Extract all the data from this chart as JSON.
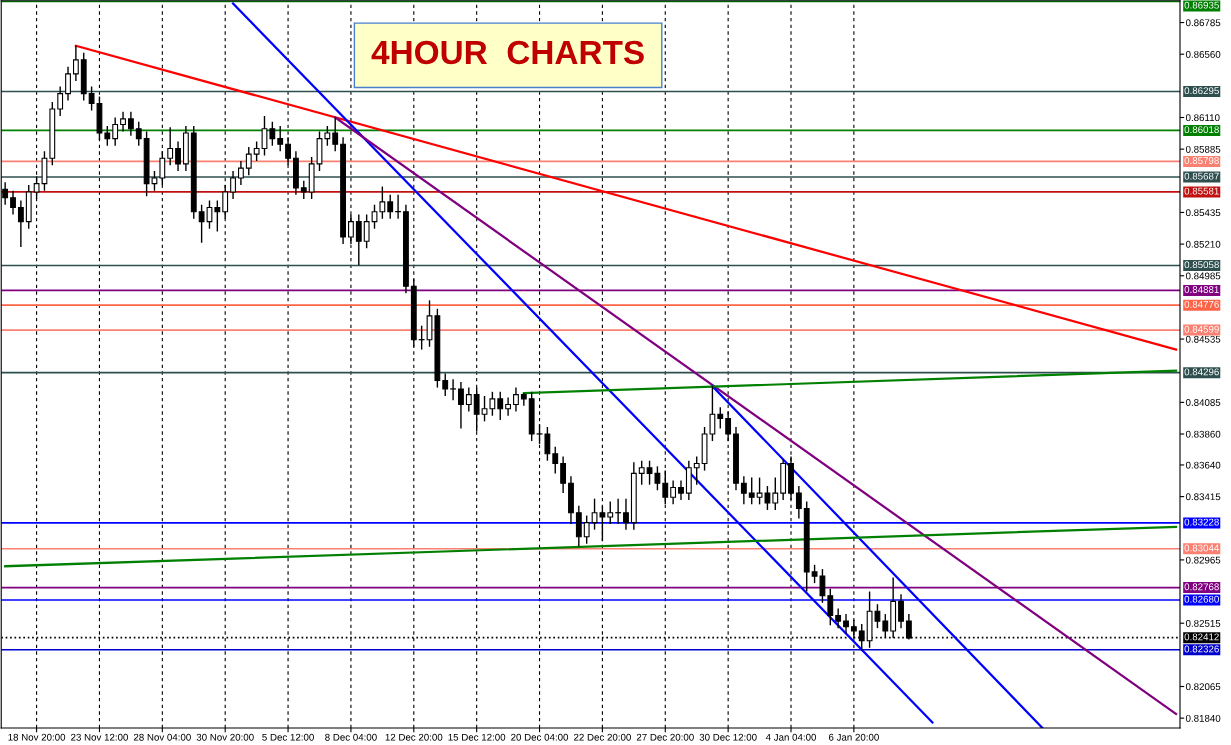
{
  "chart_data": {
    "type": "candlestick",
    "title": "4HOUR  CHARTS",
    "categories": [
      null,
      null,
      null,
      null,
      "18 Nov 20:00",
      null,
      null,
      null,
      null,
      null,
      null,
      null,
      "23 Nov 12:00",
      null,
      null,
      null,
      null,
      null,
      null,
      null,
      "28 Nov 04:00",
      null,
      null,
      null,
      null,
      null,
      null,
      null,
      "30 Nov 20:00",
      null,
      null,
      null,
      null,
      null,
      null,
      null,
      "5 Dec 12:00",
      null,
      null,
      null,
      null,
      null,
      null,
      null,
      "8 Dec 04:00",
      null,
      null,
      null,
      null,
      null,
      null,
      null,
      "12 Dec 20:00",
      null,
      null,
      null,
      null,
      null,
      null,
      null,
      "15 Dec 12:00",
      null,
      null,
      null,
      null,
      null,
      null,
      null,
      "20 Dec 04:00",
      null,
      null,
      null,
      null,
      null,
      null,
      null,
      "22 Dec 20:00",
      null,
      null,
      null,
      null,
      null,
      null,
      null,
      "27 Dec 20:00",
      null,
      null,
      null,
      null,
      null,
      null,
      null,
      "30 Dec 12:00",
      null,
      null,
      null,
      null,
      null,
      null,
      null,
      "4 Jan 04:00",
      null,
      null,
      null,
      null,
      null,
      null,
      null,
      "6 Jan 20:00",
      null,
      null,
      null,
      null,
      null,
      null,
      null,
      null,
      null,
      null,
      null,
      null,
      null,
      null,
      null,
      null,
      null,
      null,
      null,
      null,
      null,
      null,
      null,
      null,
      null,
      null,
      null,
      null,
      null,
      null,
      null,
      null,
      null,
      null,
      null,
      null,
      null,
      null,
      null,
      null,
      null
    ],
    "ohlc": [
      [
        0.856,
        0.8565,
        0.8549,
        0.8554
      ],
      [
        0.8554,
        0.8559,
        0.8542,
        0.8547
      ],
      [
        0.8547,
        0.8552,
        0.8519,
        0.8537
      ],
      [
        0.8537,
        0.8563,
        0.8532,
        0.8558
      ],
      [
        0.8558,
        0.8569,
        0.8553,
        0.8564
      ],
      [
        0.8564,
        0.8587,
        0.8559,
        0.8582
      ],
      [
        0.8582,
        0.8622,
        0.8577,
        0.8617
      ],
      [
        0.8617,
        0.8633,
        0.8612,
        0.8628
      ],
      [
        0.8628,
        0.8647,
        0.8623,
        0.8642
      ],
      [
        0.8642,
        0.8662,
        0.8637,
        0.8652
      ],
      [
        0.8652,
        0.8657,
        0.8623,
        0.8628
      ],
      [
        0.8628,
        0.8633,
        0.8616,
        0.8621
      ],
      [
        0.8621,
        0.8626,
        0.8595,
        0.86
      ],
      [
        0.86,
        0.8605,
        0.8591,
        0.8596
      ],
      [
        0.8596,
        0.8611,
        0.8591,
        0.8606
      ],
      [
        0.8606,
        0.8615,
        0.8601,
        0.861
      ],
      [
        0.861,
        0.8615,
        0.8598,
        0.8603
      ],
      [
        0.8603,
        0.8608,
        0.8591,
        0.8596
      ],
      [
        0.8596,
        0.8601,
        0.8555,
        0.8564
      ],
      [
        0.8564,
        0.8573,
        0.8559,
        0.8568
      ],
      [
        0.8568,
        0.8587,
        0.8563,
        0.8582
      ],
      [
        0.8582,
        0.8604,
        0.8577,
        0.8589
      ],
      [
        0.8589,
        0.8594,
        0.8573,
        0.8578
      ],
      [
        0.8578,
        0.8605,
        0.8573,
        0.86
      ],
      [
        0.86,
        0.8605,
        0.8539,
        0.8544
      ],
      [
        0.8544,
        0.8549,
        0.8522,
        0.8537
      ],
      [
        0.8537,
        0.8552,
        0.8532,
        0.8547
      ],
      [
        0.8547,
        0.8552,
        0.853,
        0.8544
      ],
      [
        0.8544,
        0.8563,
        0.8539,
        0.8558
      ],
      [
        0.8558,
        0.8573,
        0.8553,
        0.8568
      ],
      [
        0.8568,
        0.858,
        0.8563,
        0.8575
      ],
      [
        0.8575,
        0.859,
        0.857,
        0.8585
      ],
      [
        0.8585,
        0.8594,
        0.858,
        0.8589
      ],
      [
        0.8589,
        0.8612,
        0.8584,
        0.8603
      ],
      [
        0.8603,
        0.8608,
        0.8591,
        0.8596
      ],
      [
        0.8596,
        0.8605,
        0.8587,
        0.8592
      ],
      [
        0.8592,
        0.8597,
        0.8577,
        0.8582
      ],
      [
        0.8582,
        0.8587,
        0.8556,
        0.8561
      ],
      [
        0.8561,
        0.8566,
        0.8553,
        0.8558
      ],
      [
        0.8558,
        0.8583,
        0.8553,
        0.8578
      ],
      [
        0.8578,
        0.8601,
        0.8573,
        0.8596
      ],
      [
        0.8596,
        0.8605,
        0.8591,
        0.86
      ],
      [
        0.86,
        0.8611,
        0.8587,
        0.8592
      ],
      [
        0.8592,
        0.8597,
        0.8521,
        0.8526
      ],
      [
        0.8526,
        0.8542,
        0.8521,
        0.8537
      ],
      [
        0.8537,
        0.8542,
        0.8506,
        0.8523
      ],
      [
        0.8523,
        0.8542,
        0.8518,
        0.8537
      ],
      [
        0.8537,
        0.8549,
        0.8532,
        0.8544
      ],
      [
        0.8544,
        0.8562,
        0.8539,
        0.8551
      ],
      [
        0.8551,
        0.8556,
        0.8539,
        0.8544
      ],
      [
        0.8544,
        0.8556,
        0.8539,
        0.8544
      ],
      [
        0.8544,
        0.8549,
        0.8486,
        0.8491
      ],
      [
        0.8491,
        0.8496,
        0.8448,
        0.8453
      ],
      [
        0.8453,
        0.8463,
        0.8446,
        0.8453
      ],
      [
        0.8453,
        0.8481,
        0.8448,
        0.847
      ],
      [
        0.847,
        0.8475,
        0.8419,
        0.8424
      ],
      [
        0.8424,
        0.8429,
        0.8413,
        0.8418
      ],
      [
        0.8418,
        0.8425,
        0.841,
        0.8418
      ],
      [
        0.8418,
        0.8423,
        0.839,
        0.8407
      ],
      [
        0.8407,
        0.8419,
        0.8402,
        0.8414
      ],
      [
        0.8414,
        0.8419,
        0.8388,
        0.84
      ],
      [
        0.84,
        0.8413,
        0.8395,
        0.8404
      ],
      [
        0.8404,
        0.8416,
        0.8399,
        0.8411
      ],
      [
        0.8411,
        0.8416,
        0.8396,
        0.8404
      ],
      [
        0.8404,
        0.8412,
        0.8399,
        0.8407
      ],
      [
        0.8407,
        0.8419,
        0.8402,
        0.8414
      ],
      [
        0.8414,
        0.8415,
        0.8406,
        0.8411
      ],
      [
        0.8411,
        0.8416,
        0.8381,
        0.8386
      ],
      [
        0.8386,
        0.8393,
        0.8379,
        0.8386
      ],
      [
        0.8386,
        0.8391,
        0.8367,
        0.8372
      ],
      [
        0.8372,
        0.8377,
        0.8358,
        0.8365
      ],
      [
        0.8365,
        0.837,
        0.8344,
        0.8351
      ],
      [
        0.8351,
        0.8356,
        0.8322,
        0.833
      ],
      [
        0.833,
        0.8335,
        0.8306,
        0.8313
      ],
      [
        0.8313,
        0.8328,
        0.8308,
        0.8323
      ],
      [
        0.8323,
        0.834,
        0.8318,
        0.833
      ],
      [
        0.833,
        0.8335,
        0.831,
        0.8327
      ],
      [
        0.8327,
        0.8338,
        0.8322,
        0.833
      ],
      [
        0.833,
        0.834,
        0.8322,
        0.833
      ],
      [
        0.833,
        0.834,
        0.8318,
        0.8323
      ],
      [
        0.8323,
        0.8366,
        0.8318,
        0.8358
      ],
      [
        0.8358,
        0.8367,
        0.835,
        0.8362
      ],
      [
        0.8362,
        0.8367,
        0.835,
        0.8358
      ],
      [
        0.8358,
        0.8363,
        0.8346,
        0.8351
      ],
      [
        0.8351,
        0.836,
        0.8336,
        0.8341
      ],
      [
        0.8341,
        0.8353,
        0.8336,
        0.8348
      ],
      [
        0.8348,
        0.8353,
        0.8339,
        0.8344
      ],
      [
        0.8344,
        0.8367,
        0.8339,
        0.8362
      ],
      [
        0.8362,
        0.837,
        0.835,
        0.8365
      ],
      [
        0.8365,
        0.8391,
        0.836,
        0.8386
      ],
      [
        0.8386,
        0.842,
        0.8381,
        0.84
      ],
      [
        0.84,
        0.8405,
        0.839,
        0.8397
      ],
      [
        0.8397,
        0.8402,
        0.8381,
        0.8386
      ],
      [
        0.8386,
        0.8391,
        0.8346,
        0.8351
      ],
      [
        0.8351,
        0.8356,
        0.8336,
        0.8344
      ],
      [
        0.8344,
        0.8355,
        0.8336,
        0.8341
      ],
      [
        0.8341,
        0.8355,
        0.8336,
        0.8344
      ],
      [
        0.8344,
        0.8349,
        0.8332,
        0.8337
      ],
      [
        0.8337,
        0.8355,
        0.8332,
        0.8344
      ],
      [
        0.8344,
        0.8368,
        0.8339,
        0.8365
      ],
      [
        0.8365,
        0.837,
        0.8339,
        0.8344
      ],
      [
        0.8344,
        0.8349,
        0.8326,
        0.8333
      ],
      [
        0.8333,
        0.8338,
        0.8274,
        0.8288
      ],
      [
        0.8288,
        0.8293,
        0.828,
        0.8285
      ],
      [
        0.8285,
        0.829,
        0.8266,
        0.8271
      ],
      [
        0.8271,
        0.8276,
        0.825,
        0.8257
      ],
      [
        0.8257,
        0.8262,
        0.8248,
        0.8253
      ],
      [
        0.8253,
        0.8258,
        0.8244,
        0.8249
      ],
      [
        0.8249,
        0.8254,
        0.8241,
        0.8246
      ],
      [
        0.8246,
        0.8251,
        0.8232,
        0.8239
      ],
      [
        0.8239,
        0.8274,
        0.8234,
        0.826
      ],
      [
        0.826,
        0.8265,
        0.8248,
        0.8253
      ],
      [
        0.8253,
        0.8258,
        0.8241,
        0.8246
      ],
      [
        0.8246,
        0.8284,
        0.8241,
        0.8267
      ],
      [
        0.8267,
        0.8272,
        0.8248,
        0.8253
      ],
      [
        0.8253,
        0.8258,
        0.824,
        0.8241
      ],
      null,
      null,
      null,
      null,
      null,
      null,
      null,
      null,
      null,
      null,
      null,
      null,
      null,
      null,
      null,
      null,
      null,
      null,
      null,
      null,
      null,
      null,
      null,
      null,
      null,
      null,
      null,
      null,
      null,
      null,
      null,
      null,
      null,
      null
    ],
    "series": [
      {
        "type": "line",
        "color": "#ff0000",
        "values": [
          null,
          null,
          null,
          null,
          null,
          null,
          null,
          null,
          null,
          0.8662,
          null,
          null,
          null,
          null,
          null,
          null,
          null,
          null,
          null,
          null,
          null,
          null,
          null,
          null,
          null,
          null,
          null,
          null,
          null,
          null,
          null,
          null,
          null,
          null,
          null,
          null,
          null,
          null,
          null,
          null,
          null,
          null,
          null,
          null,
          null,
          null,
          null,
          null,
          null,
          null,
          null,
          null,
          null,
          null,
          null,
          null,
          null,
          null,
          null,
          null,
          null,
          null,
          null,
          null,
          null,
          null,
          null,
          null,
          null,
          null,
          null,
          null,
          null,
          null,
          null,
          null,
          null,
          null,
          null,
          null,
          null,
          null,
          null,
          null,
          null,
          null,
          null,
          null,
          null,
          null,
          null,
          null,
          null,
          null,
          null,
          null,
          null,
          null,
          null,
          null,
          null,
          null,
          null,
          null,
          null,
          null,
          null,
          null,
          null,
          null,
          null,
          null,
          null,
          null,
          null,
          null,
          null,
          null,
          null,
          null,
          null,
          null,
          null,
          null,
          null,
          null,
          null,
          null,
          null,
          null,
          null,
          null,
          null,
          null,
          null,
          null,
          null,
          null,
          null,
          null,
          null,
          null,
          null,
          null,
          null,
          null,
          null,
          null,
          null,
          0.8446
        ]
      },
      {
        "type": "line",
        "color": "#0000ff",
        "values": [
          null,
          null,
          null,
          null,
          null,
          null,
          null,
          null,
          null,
          null,
          null,
          null,
          null,
          null,
          null,
          null,
          null,
          null,
          null,
          null,
          null,
          null,
          null,
          null,
          null,
          null,
          null,
          null,
          null,
          0.8692,
          null,
          null,
          null,
          null,
          null,
          null,
          null,
          null,
          null,
          null,
          null,
          null,
          null,
          null,
          null,
          null,
          null,
          null,
          null,
          null,
          null,
          null,
          null,
          null,
          null,
          null,
          null,
          null,
          null,
          null,
          null,
          null,
          null,
          null,
          null,
          null,
          null,
          null,
          null,
          null,
          null,
          null,
          null,
          null,
          null,
          null,
          null,
          null,
          null,
          null,
          null,
          null,
          null,
          null,
          null,
          null,
          null,
          null,
          null,
          null,
          null,
          null,
          null,
          null,
          null,
          null,
          null,
          null,
          null,
          null,
          null,
          null,
          null,
          null,
          null,
          null,
          null,
          null,
          null,
          null,
          null,
          null,
          null,
          null,
          null,
          null,
          null,
          null,
          0.8181,
          null,
          null,
          null,
          null,
          null,
          null,
          null,
          null,
          null,
          null,
          null,
          null,
          null,
          null,
          null,
          null,
          null,
          null,
          null,
          null,
          null,
          null,
          null,
          null,
          null,
          null,
          null,
          null,
          null,
          null,
          null
        ]
      },
      {
        "type": "line",
        "color": "#800080",
        "values": [
          null,
          null,
          null,
          null,
          null,
          null,
          null,
          null,
          null,
          null,
          null,
          null,
          null,
          null,
          null,
          null,
          null,
          null,
          null,
          null,
          null,
          null,
          null,
          null,
          null,
          null,
          null,
          null,
          null,
          null,
          null,
          null,
          null,
          null,
          null,
          null,
          null,
          null,
          null,
          null,
          null,
          null,
          0.8611,
          null,
          null,
          null,
          null,
          null,
          null,
          null,
          null,
          null,
          null,
          null,
          null,
          null,
          null,
          null,
          null,
          null,
          null,
          null,
          null,
          null,
          null,
          null,
          null,
          null,
          null,
          null,
          null,
          null,
          null,
          null,
          null,
          null,
          null,
          null,
          null,
          null,
          null,
          null,
          null,
          null,
          null,
          null,
          null,
          null,
          null,
          null,
          null,
          null,
          null,
          null,
          null,
          null,
          null,
          null,
          null,
          null,
          null,
          null,
          null,
          null,
          null,
          null,
          null,
          null,
          null,
          null,
          null,
          null,
          null,
          null,
          null,
          null,
          null,
          null,
          null,
          null,
          null,
          null,
          null,
          null,
          null,
          null,
          null,
          null,
          null,
          null,
          null,
          null,
          null,
          null,
          null,
          null,
          null,
          null,
          null,
          null,
          null,
          null,
          null,
          null,
          null,
          null,
          null,
          null,
          null,
          0.8187
        ]
      },
      {
        "type": "line",
        "color": "#0000ff",
        "values": [
          null,
          null,
          null,
          null,
          null,
          null,
          null,
          null,
          null,
          null,
          null,
          null,
          null,
          null,
          null,
          null,
          null,
          null,
          null,
          null,
          null,
          null,
          null,
          null,
          null,
          null,
          null,
          null,
          null,
          null,
          null,
          null,
          null,
          null,
          null,
          null,
          null,
          null,
          null,
          null,
          null,
          null,
          null,
          null,
          null,
          null,
          null,
          null,
          null,
          null,
          null,
          null,
          null,
          null,
          null,
          null,
          null,
          null,
          null,
          null,
          null,
          null,
          null,
          null,
          null,
          null,
          null,
          null,
          null,
          null,
          null,
          null,
          null,
          null,
          null,
          null,
          null,
          null,
          null,
          null,
          null,
          null,
          null,
          null,
          null,
          null,
          null,
          null,
          null,
          null,
          0.842,
          null,
          null,
          null,
          null,
          null,
          null,
          null,
          null,
          null,
          null,
          null,
          null,
          null,
          null,
          null,
          null,
          null,
          null,
          null,
          null,
          null,
          null,
          null,
          null,
          null,
          null,
          null,
          null,
          null,
          null,
          null,
          null,
          null,
          null,
          null,
          null,
          null,
          null,
          null,
          null,
          null,
          0.8177,
          null,
          null,
          null,
          null,
          null,
          null,
          null,
          null,
          null,
          null,
          null,
          null,
          null,
          null,
          null,
          null,
          null
        ]
      },
      {
        "type": "line",
        "color": "#008000",
        "values": [
          null,
          null,
          null,
          null,
          null,
          null,
          null,
          null,
          null,
          null,
          null,
          null,
          null,
          null,
          null,
          null,
          null,
          null,
          null,
          null,
          null,
          null,
          null,
          null,
          null,
          null,
          null,
          null,
          null,
          null,
          null,
          null,
          null,
          null,
          null,
          null,
          null,
          null,
          null,
          null,
          null,
          null,
          null,
          null,
          null,
          null,
          null,
          null,
          null,
          null,
          null,
          null,
          null,
          null,
          null,
          null,
          null,
          null,
          null,
          null,
          null,
          null,
          null,
          null,
          null,
          null,
          0.8415,
          null,
          null,
          null,
          null,
          null,
          null,
          null,
          null,
          null,
          null,
          null,
          null,
          null,
          null,
          null,
          null,
          null,
          null,
          null,
          null,
          null,
          null,
          null,
          null,
          null,
          null,
          null,
          null,
          null,
          null,
          null,
          null,
          null,
          null,
          null,
          null,
          null,
          null,
          null,
          null,
          null,
          null,
          null,
          null,
          null,
          null,
          null,
          null,
          null,
          null,
          null,
          null,
          null,
          null,
          null,
          null,
          null,
          null,
          null,
          null,
          null,
          null,
          null,
          null,
          null,
          null,
          null,
          null,
          null,
          null,
          null,
          null,
          null,
          null,
          null,
          null,
          null,
          null,
          null,
          null,
          null,
          null,
          0.8431
        ]
      },
      {
        "type": "line",
        "color": "#008000",
        "values": [
          0.8292,
          null,
          null,
          null,
          null,
          null,
          null,
          null,
          null,
          null,
          null,
          null,
          null,
          null,
          null,
          null,
          null,
          null,
          null,
          null,
          null,
          null,
          null,
          null,
          null,
          null,
          null,
          null,
          null,
          null,
          null,
          null,
          null,
          null,
          null,
          null,
          null,
          null,
          null,
          null,
          null,
          null,
          null,
          null,
          null,
          null,
          null,
          null,
          null,
          null,
          null,
          null,
          null,
          null,
          null,
          null,
          null,
          null,
          null,
          null,
          null,
          null,
          null,
          null,
          null,
          null,
          null,
          null,
          null,
          null,
          null,
          null,
          null,
          null,
          null,
          null,
          null,
          null,
          null,
          null,
          null,
          null,
          null,
          null,
          null,
          null,
          null,
          null,
          null,
          null,
          null,
          null,
          null,
          null,
          null,
          null,
          null,
          null,
          null,
          null,
          null,
          null,
          null,
          null,
          null,
          null,
          null,
          null,
          null,
          null,
          null,
          null,
          null,
          null,
          null,
          null,
          null,
          null,
          null,
          null,
          null,
          null,
          null,
          null,
          null,
          null,
          null,
          null,
          null,
          null,
          null,
          null,
          null,
          null,
          null,
          null,
          null,
          null,
          null,
          null,
          null,
          null,
          null,
          null,
          null,
          null,
          null,
          null,
          null,
          0.832
        ]
      }
    ],
    "ylim": [
      0.8177,
      0.8694
    ],
    "yticks": [
      0.86785,
      {
        "value": 0.8656,
        "label": "0.86560"
      },
      {
        "value": 0.8611,
        "label": "0.86110"
      },
      0.85885,
      0.85435,
      {
        "value": 0.8521,
        "label": "0.85210"
      },
      0.84985,
      0.84535,
      0.84085,
      {
        "value": 0.8386,
        "label": "0.83860"
      },
      {
        "value": 0.8364,
        "label": "0.83640"
      },
      0.83415,
      0.82965,
      0.82515,
      0.82065,
      {
        "value": 0.8184,
        "label": "0.81840"
      }
    ],
    "ref_lines": [
      {
        "axis": "y",
        "value": 0.86935,
        "label": "0.86935",
        "color": "#008000"
      },
      {
        "axis": "y",
        "value": 0.86295,
        "label": "0.86295",
        "color": "#2f4f4f"
      },
      {
        "axis": "y",
        "value": 0.86018,
        "label": "0.86018",
        "color": "#008000"
      },
      {
        "axis": "y",
        "value": 0.85798,
        "label": "0.85798",
        "color": "#fa8072"
      },
      {
        "axis": "y",
        "value": 0.85687,
        "label": "0.85687",
        "color": "#2f4f4f"
      },
      {
        "axis": "y",
        "value": 0.85581,
        "label": "0.85581",
        "color": "#c01010"
      },
      {
        "axis": "y",
        "value": 0.85058,
        "label": "0.85058",
        "color": "#2f4f4f"
      },
      {
        "axis": "y",
        "value": 0.84881,
        "label": "0.84881",
        "color": "#800080"
      },
      {
        "axis": "y",
        "value": 0.84776,
        "label": "0.84776",
        "color": "#ff6347"
      },
      {
        "axis": "y",
        "value": 0.84599,
        "label": "0.84599",
        "color": "#fa8072"
      },
      {
        "axis": "y",
        "value": 0.84296,
        "label": "0.84296",
        "color": "#2f4f4f"
      },
      {
        "axis": "y",
        "value": 0.83228,
        "label": "0.83228",
        "color": "#0000ff"
      },
      {
        "axis": "y",
        "value": 0.83044,
        "label": "0.83044",
        "color": "#fa8072"
      },
      {
        "axis": "y",
        "value": 0.82768,
        "label": "0.82768",
        "color": "#800080"
      },
      {
        "axis": "y",
        "value": 0.8268,
        "label": "0.82680",
        "color": "#0000ff"
      },
      {
        "axis": "y",
        "value": 0.82412,
        "label": "0.82412",
        "color": "#000000",
        "line_style": "dotted"
      },
      {
        "axis": "y",
        "value": 0.82326,
        "label": "0.82326",
        "color": "#0000cd"
      }
    ],
    "grid": "x",
    "legend": false
  }
}
